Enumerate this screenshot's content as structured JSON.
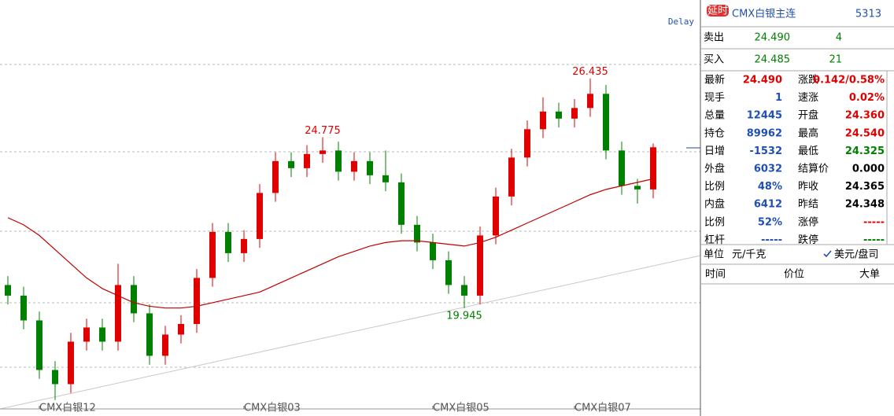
{
  "chart_data": {
    "type": "candlestick",
    "candles": [
      [
        20.6,
        20.85,
        20.05,
        20.3
      ],
      [
        20.3,
        20.55,
        19.35,
        19.6
      ],
      [
        19.6,
        19.85,
        17.95,
        18.2
      ],
      [
        18.2,
        18.45,
        17.35,
        17.8
      ],
      [
        17.8,
        19.25,
        17.55,
        19.0
      ],
      [
        19.0,
        19.65,
        18.75,
        19.4
      ],
      [
        19.4,
        19.65,
        18.75,
        19.0
      ],
      [
        19.0,
        21.2,
        18.75,
        20.6
      ],
      [
        20.6,
        20.85,
        19.55,
        19.8
      ],
      [
        19.8,
        20.05,
        18.35,
        18.6
      ],
      [
        18.6,
        19.45,
        18.35,
        19.2
      ],
      [
        19.2,
        19.75,
        18.95,
        19.5
      ],
      [
        19.5,
        21.05,
        19.25,
        20.8
      ],
      [
        20.8,
        22.35,
        20.55,
        22.1
      ],
      [
        22.1,
        22.35,
        21.25,
        21.5
      ],
      [
        21.5,
        22.15,
        21.25,
        21.9
      ],
      [
        21.9,
        23.45,
        21.65,
        23.2
      ],
      [
        23.2,
        24.35,
        22.95,
        24.1
      ],
      [
        24.1,
        24.35,
        23.65,
        23.9
      ],
      [
        23.9,
        24.55,
        23.65,
        24.3
      ],
      [
        24.3,
        24.775,
        24.05,
        24.4
      ],
      [
        24.4,
        24.65,
        23.55,
        23.8
      ],
      [
        23.8,
        24.35,
        23.55,
        24.1
      ],
      [
        24.1,
        24.35,
        23.45,
        23.7
      ],
      [
        23.7,
        24.4,
        23.25,
        23.5
      ],
      [
        23.5,
        23.75,
        22.05,
        22.3
      ],
      [
        22.3,
        22.55,
        21.55,
        21.8
      ],
      [
        21.8,
        22.05,
        21.05,
        21.3
      ],
      [
        21.3,
        21.55,
        20.35,
        20.6
      ],
      [
        20.6,
        20.85,
        19.945,
        20.3
      ],
      [
        20.3,
        22.25,
        20.05,
        22.0
      ],
      [
        22.0,
        23.35,
        21.75,
        23.1
      ],
      [
        23.1,
        24.45,
        22.85,
        24.2
      ],
      [
        24.2,
        25.25,
        23.95,
        25.0
      ],
      [
        25.0,
        25.9,
        24.75,
        25.5
      ],
      [
        25.5,
        25.75,
        25.05,
        25.3
      ],
      [
        25.3,
        25.85,
        25.05,
        25.6
      ],
      [
        25.6,
        26.435,
        25.35,
        26.0
      ],
      [
        26.0,
        26.25,
        24.15,
        24.4
      ],
      [
        24.4,
        24.65,
        23.15,
        23.4
      ],
      [
        23.4,
        23.6,
        22.9,
        23.3
      ],
      [
        23.3,
        24.6,
        23.05,
        24.49
      ]
    ],
    "ma": [
      22.5,
      22.3,
      22.0,
      21.6,
      21.2,
      20.8,
      20.5,
      20.3,
      20.1,
      20.0,
      19.95,
      19.95,
      20.0,
      20.1,
      20.2,
      20.3,
      20.4,
      20.6,
      20.8,
      21.0,
      21.2,
      21.4,
      21.55,
      21.7,
      21.8,
      21.85,
      21.85,
      21.8,
      21.75,
      21.7,
      21.8,
      21.95,
      22.15,
      22.35,
      22.55,
      22.75,
      22.95,
      23.15,
      23.3,
      23.4,
      23.5,
      23.6
    ],
    "categories": [
      null,
      null,
      "CMX白银12",
      null,
      null,
      null,
      null,
      null,
      null,
      null,
      null,
      null,
      null,
      null,
      null,
      "CMX白银03",
      null,
      null,
      null,
      null,
      null,
      null,
      null,
      null,
      null,
      null,
      null,
      "CMX白银05",
      null,
      null,
      null,
      null,
      null,
      null,
      null,
      null,
      "CMX白银07",
      null,
      null,
      null,
      null,
      null
    ],
    "ylim": [
      17.1,
      28.65
    ],
    "up_color": "#e00000",
    "down_color": "#008000",
    "ma_color": "#c00000",
    "delay_label": "Delay"
  },
  "quote": {
    "badge": "延时",
    "name": "CMX白银主连",
    "code": "5313",
    "sell": {
      "label": "卖出",
      "price": "24.490",
      "volume": "4"
    },
    "buy": {
      "label": "买入",
      "price": "24.485",
      "volume": "21"
    },
    "left": [
      {
        "label": "最新",
        "value": "24.490",
        "color": "#e00000"
      },
      {
        "label": "现手",
        "value": "1",
        "color": "#2050b0"
      },
      {
        "label": "总量",
        "value": "12445",
        "color": "#2050b0"
      },
      {
        "label": "持仓",
        "value": "89962",
        "color": "#2050b0"
      },
      {
        "label": "日增",
        "value": "-1532",
        "color": "#2050b0"
      },
      {
        "label": "外盘",
        "value": "6032",
        "color": "#2050b0"
      },
      {
        "label": "比例",
        "value": "48%",
        "color": "#2050b0"
      },
      {
        "label": "内盘",
        "value": "6412",
        "color": "#2050b0"
      },
      {
        "label": "比例",
        "value": "52%",
        "color": "#2050b0"
      },
      {
        "label": "杠杆",
        "value": "-----",
        "color": "#2050b0"
      }
    ],
    "right": [
      {
        "label": "涨跌",
        "value": "0.142/0.58%",
        "color": "#e00000"
      },
      {
        "label": "速涨",
        "value": "0.02%",
        "color": "#e00000"
      },
      {
        "label": "开盘",
        "value": "24.360",
        "color": "#e00000"
      },
      {
        "label": "最高",
        "value": "24.540",
        "color": "#e00000"
      },
      {
        "label": "最低",
        "value": "24.325",
        "color": "#008000"
      },
      {
        "label": "结算价",
        "value": "0.000",
        "color": "#000000"
      },
      {
        "label": "昨收",
        "value": "24.365",
        "color": "#000000"
      },
      {
        "label": "昨结",
        "value": "24.348",
        "color": "#000000"
      },
      {
        "label": "涨停",
        "value": "-----",
        "color": "#e00000"
      },
      {
        "label": "跌停",
        "value": "-----",
        "color": "#008000"
      }
    ],
    "unit": {
      "label": "单位",
      "option1": "元/千克",
      "option2": "美元/盘司"
    },
    "trade_header": [
      "时间",
      "价位",
      "大单"
    ]
  }
}
